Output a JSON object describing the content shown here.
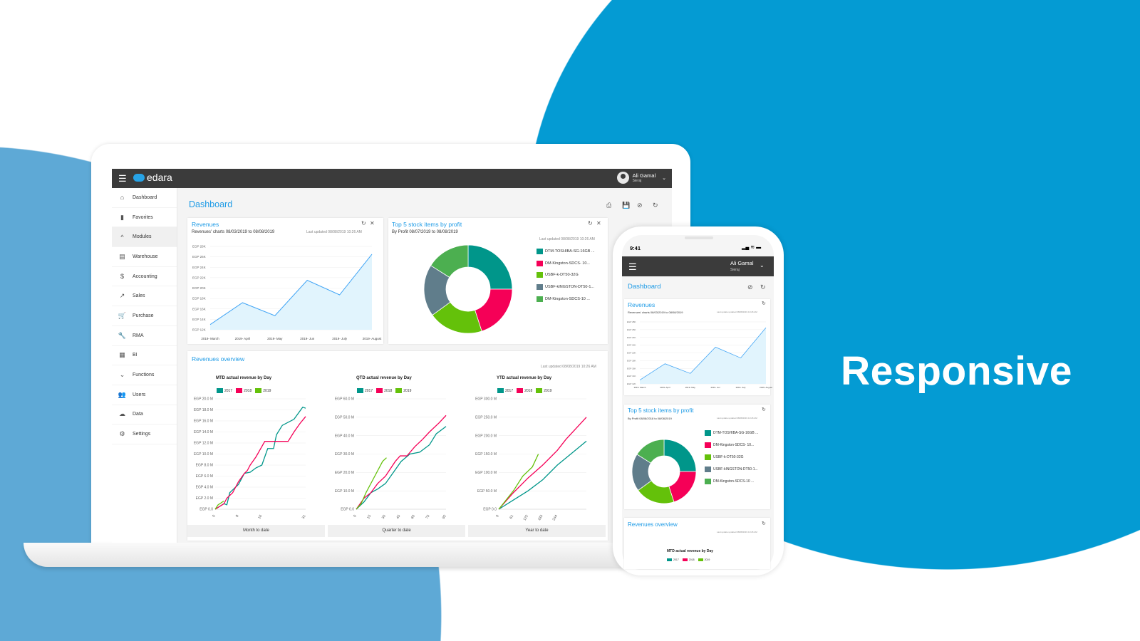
{
  "background": {
    "tagline": "Responsive",
    "colors": {
      "big_circle": "#049bd3",
      "left_shape": "#5ea9d6"
    }
  },
  "app": {
    "brand": "edara",
    "menu_icon": "hamburger-icon",
    "user": {
      "name": "Ali Gamal",
      "company": "Sieraj"
    }
  },
  "sidebar": {
    "items": [
      {
        "label": "Dashboard",
        "icon": "home-icon",
        "glyph": "⌂"
      },
      {
        "label": "Favorites",
        "icon": "bookmark-icon",
        "glyph": "▮"
      },
      {
        "label": "Modules",
        "icon": "chevron-up-icon",
        "glyph": "^"
      },
      {
        "label": "Warehouse",
        "icon": "store-icon",
        "glyph": "▤"
      },
      {
        "label": "Accounting",
        "icon": "dollar-icon",
        "glyph": "$"
      },
      {
        "label": "Sales",
        "icon": "trending-up-icon",
        "glyph": "↗"
      },
      {
        "label": "Purchase",
        "icon": "cart-icon",
        "glyph": "🛒"
      },
      {
        "label": "RMA",
        "icon": "wrench-icon",
        "glyph": "🔧"
      },
      {
        "label": "BI",
        "icon": "table-icon",
        "glyph": "▦"
      },
      {
        "label": "Functions",
        "icon": "chevron-down-icon",
        "glyph": "⌄"
      },
      {
        "label": "Users",
        "icon": "users-icon",
        "glyph": "👥"
      },
      {
        "label": "Data",
        "icon": "cloud-icon",
        "glyph": "☁"
      },
      {
        "label": "Settings",
        "icon": "gear-icon",
        "glyph": "⚙"
      }
    ]
  },
  "page": {
    "title": "Dashboard",
    "toolbar": [
      "reset-icon",
      "save-icon",
      "hide-icon",
      "refresh-icon"
    ]
  },
  "revenues": {
    "title": "Revenues",
    "subtitle": "Revenues' charts 08/03/2019 to 08/08/2019",
    "updated": "Last updated 08/08/2019 10:26 AM"
  },
  "top5": {
    "title": "Top 5 stock items by profit",
    "subtitle": "By Profit 08/07/2019 to 08/08/2019",
    "updated": "Last updated 08/08/2019 10:26 AM"
  },
  "overview": {
    "title": "Revenues overview",
    "updated": "Last updated 08/08/2019 10:26 AM",
    "footers": [
      "Month to date",
      "Quarter to date",
      "Year to date"
    ]
  },
  "phone": {
    "time": "9:41",
    "user": {
      "name": "Ali Gamal",
      "company": "Sieraj"
    },
    "title": "Dashboard",
    "revenues": {
      "title": "Revenues",
      "subtitle": "Revenues' charts 08/03/2019 to 08/08/2019",
      "updated": "Last update updated 08/08/2019 10:26 AM"
    },
    "top5": {
      "title": "Top 5 stock items by profit",
      "subtitle": "By Profit 08/08/2018 to 08/08/2019",
      "updated": "Last update updated 08/08/2019 10:26 AM"
    },
    "overview": {
      "title": "Revenues overview",
      "updated": "Last update updated 08/08/2019 10:26 AM",
      "first_chart": "MTD actual revenue by Day"
    }
  },
  "chart_data": [
    {
      "id": "revenues",
      "type": "area",
      "categories": [
        "2019- March",
        "2019- April",
        "2019- May",
        "2019- Jun",
        "2019- July",
        "2019- August"
      ],
      "values": [
        13,
        17.2,
        14.7,
        21.5,
        18.7,
        26.5
      ],
      "unit": "K EGP",
      "ylim": [
        12,
        28
      ],
      "yticks": [
        12,
        14,
        16,
        18,
        20,
        22,
        24,
        26,
        28
      ],
      "ytick_labels": [
        "EGP 12K",
        "EGP 14K",
        "EGP 16K",
        "EGP 18K",
        "EGP 20K",
        "EGP 22K",
        "EGP 24K",
        "EGP 26K",
        "EGP 28K"
      ],
      "grid": true,
      "color": "#42a5f5",
      "fill": "#e1f4fd"
    },
    {
      "id": "top5",
      "type": "pie",
      "donut": true,
      "labels": [
        "DTM-TOSHIBA-SG-16GB ...",
        "DM-Kingston-SDCS- 10...",
        "USBF-k-DT50-32G",
        "USBF-kINGSTON-DT50-1...",
        "DM-Kingston-SDCS-10 ..."
      ],
      "values": [
        25,
        20,
        20,
        19,
        16
      ],
      "colors": [
        "#00968a",
        "#f50057",
        "#64c10a",
        "#607d8b",
        "#4caf50"
      ],
      "legend": "right"
    },
    {
      "id": "mtd",
      "type": "line",
      "title": "MTD actual revenue by Day",
      "xlim": [
        0,
        31
      ],
      "xticks": [
        0,
        8,
        16,
        31
      ],
      "xtick_labels": [
        "0",
        "8",
        "16",
        "31"
      ],
      "ylim": [
        0,
        20
      ],
      "yticks": [
        0,
        2,
        4,
        6,
        8,
        10,
        12,
        14,
        16,
        18,
        20
      ],
      "ytick_labels": [
        "EGP 0.0",
        "EGP 2.0 M",
        "EGP 4.0 M",
        "EGP 6.0 M",
        "EGP 8.0 M",
        "EGP 10.0 M",
        "EGP 12.0 M",
        "EGP 14.0 M",
        "EGP 16.0 M",
        "EGP 18.0 M",
        "EGP 20.0 M"
      ],
      "legend": "top",
      "series": [
        {
          "name": "2017",
          "color": "#00968a",
          "points": [
            [
              0,
              0
            ],
            [
              3,
              1
            ],
            [
              4,
              0.8
            ],
            [
              5,
              3
            ],
            [
              8,
              4.5
            ],
            [
              10,
              6.5
            ],
            [
              12,
              6.7
            ],
            [
              14,
              7.5
            ],
            [
              16,
              8
            ],
            [
              18,
              11
            ],
            [
              20,
              11
            ],
            [
              21,
              13.5
            ],
            [
              23,
              15.2
            ],
            [
              27,
              16.3
            ],
            [
              30,
              18.5
            ],
            [
              31,
              18.3
            ]
          ]
        },
        {
          "name": "2018",
          "color": "#f50057",
          "points": [
            [
              0,
              0
            ],
            [
              3,
              1
            ],
            [
              4,
              2
            ],
            [
              6,
              3
            ],
            [
              8,
              5
            ],
            [
              10,
              6.5
            ],
            [
              11,
              7
            ],
            [
              12,
              8
            ],
            [
              14,
              9.5
            ],
            [
              17,
              12.3
            ],
            [
              25,
              12.3
            ],
            [
              27,
              14
            ],
            [
              29,
              15.5
            ],
            [
              31,
              16.8
            ]
          ]
        },
        {
          "name": "2019",
          "color": "#64c10a",
          "points": [
            [
              0,
              0
            ],
            [
              1,
              0.8
            ],
            [
              3,
              1.5
            ]
          ]
        }
      ]
    },
    {
      "id": "qtd",
      "type": "line",
      "title": "QTD actual revenue by Day",
      "xlim": [
        0,
        92
      ],
      "xticks": [
        0,
        15,
        30,
        45,
        60,
        75,
        92
      ],
      "xtick_labels": [
        "0",
        "15",
        "30",
        "45",
        "60",
        "75",
        "92"
      ],
      "ylim": [
        0,
        60
      ],
      "yticks": [
        0,
        10,
        20,
        30,
        40,
        50,
        60
      ],
      "ytick_labels": [
        "EGP 0.0",
        "EGP 10.0 M",
        "EGP 20.0 M",
        "EGP 30.0 M",
        "EGP 40.0 M",
        "EGP 50.0 M",
        "EGP 60.0 M"
      ],
      "legend": "top",
      "series": [
        {
          "name": "2017",
          "color": "#00968a",
          "points": [
            [
              0,
              0
            ],
            [
              8,
              4
            ],
            [
              15,
              9
            ],
            [
              22,
              11
            ],
            [
              30,
              14
            ],
            [
              38,
              20
            ],
            [
              46,
              26
            ],
            [
              55,
              30
            ],
            [
              65,
              31
            ],
            [
              75,
              35
            ],
            [
              82,
              41
            ],
            [
              92,
              45
            ]
          ]
        },
        {
          "name": "2018",
          "color": "#f50057",
          "points": [
            [
              0,
              0
            ],
            [
              8,
              6
            ],
            [
              15,
              9
            ],
            [
              22,
              14
            ],
            [
              30,
              18
            ],
            [
              40,
              26
            ],
            [
              45,
              29
            ],
            [
              52,
              29
            ],
            [
              60,
              34
            ],
            [
              68,
              38
            ],
            [
              75,
              42
            ],
            [
              85,
              47
            ],
            [
              92,
              51
            ]
          ]
        },
        {
          "name": "2019",
          "color": "#64c10a",
          "points": [
            [
              0,
              0
            ],
            [
              5,
              3
            ],
            [
              10,
              9
            ],
            [
              16,
              15
            ],
            [
              22,
              21
            ],
            [
              27,
              26
            ],
            [
              31,
              28
            ]
          ]
        }
      ]
    },
    {
      "id": "ytd",
      "type": "line",
      "title": "YTD actual revenue by Day",
      "xlim": [
        0,
        365
      ],
      "xticks": [
        0,
        61,
        122,
        183,
        244
      ],
      "xtick_labels": [
        "0",
        "61",
        "122",
        "183",
        "244"
      ],
      "ylim": [
        0,
        300
      ],
      "yticks": [
        0,
        50,
        100,
        150,
        200,
        250,
        300
      ],
      "ytick_labels": [
        "EGP 0.0",
        "EGP 50.0 M",
        "EGP 100.0 M",
        "EGP 150.0 M",
        "EGP 200.0 M",
        "EGP 250.0 M",
        "EGP 300.0 M"
      ],
      "legend": "top",
      "series": [
        {
          "name": "2017",
          "color": "#00968a",
          "points": [
            [
              0,
              0
            ],
            [
              61,
              25
            ],
            [
              122,
              50
            ],
            [
              183,
              80
            ],
            [
              244,
              120
            ],
            [
              300,
              150
            ],
            [
              365,
              185
            ]
          ]
        },
        {
          "name": "2018",
          "color": "#f50057",
          "points": [
            [
              0,
              0
            ],
            [
              61,
              45
            ],
            [
              122,
              85
            ],
            [
              183,
              120
            ],
            [
              244,
              160
            ],
            [
              280,
              190
            ],
            [
              365,
              250
            ]
          ]
        },
        {
          "name": "2019",
          "color": "#64c10a",
          "points": [
            [
              0,
              0
            ],
            [
              61,
              50
            ],
            [
              100,
              90
            ],
            [
              140,
              115
            ],
            [
              165,
              150
            ]
          ]
        }
      ]
    }
  ]
}
